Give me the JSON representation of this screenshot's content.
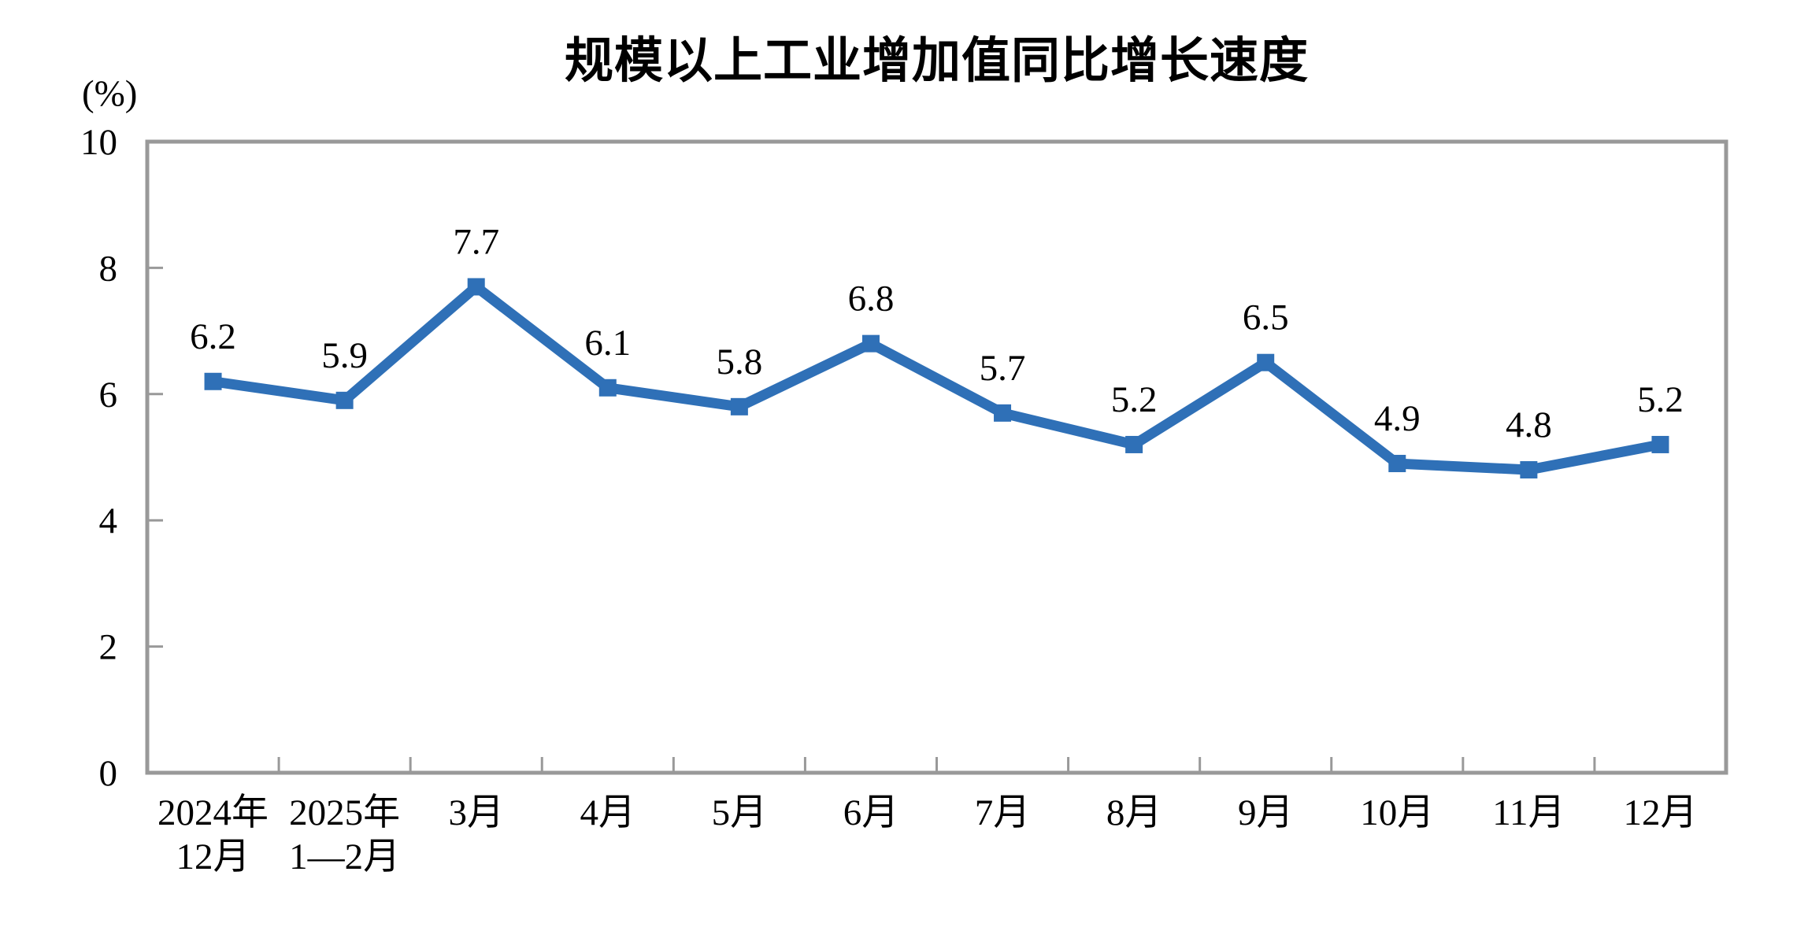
{
  "chart_data": {
    "type": "line",
    "title": "规模以上工业增加值同比增长速度",
    "unit_label": "(%)",
    "categories": [
      [
        "2024年",
        "12月"
      ],
      [
        "2025年",
        "1—2月"
      ],
      [
        "3月"
      ],
      [
        "4月"
      ],
      [
        "5月"
      ],
      [
        "6月"
      ],
      [
        "7月"
      ],
      [
        "8月"
      ],
      [
        "9月"
      ],
      [
        "10月"
      ],
      [
        "11月"
      ],
      [
        "12月"
      ]
    ],
    "values": [
      6.2,
      5.9,
      7.7,
      6.1,
      5.8,
      6.8,
      5.7,
      5.2,
      6.5,
      4.9,
      4.8,
      5.2
    ],
    "data_labels": [
      "6.2",
      "5.9",
      "7.7",
      "6.1",
      "5.8",
      "6.8",
      "5.7",
      "5.2",
      "6.5",
      "4.9",
      "4.8",
      "5.2"
    ],
    "y_ticks": [
      0,
      2,
      4,
      6,
      8,
      10
    ],
    "ylim": [
      0,
      10
    ],
    "grid": false,
    "legend": "none",
    "marker": "square",
    "colors": {
      "line": "#2F70B7",
      "marker": "#2F70B7",
      "axis_border": "#999999",
      "text": "#000000",
      "background": "#FFFFFF"
    }
  }
}
